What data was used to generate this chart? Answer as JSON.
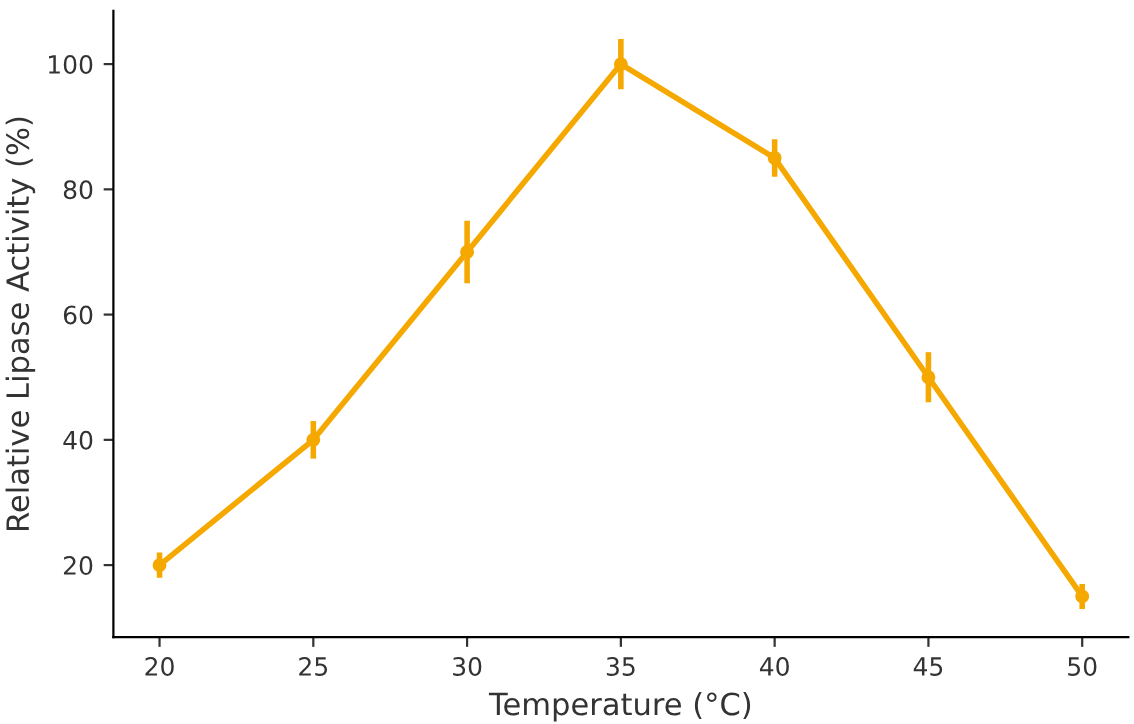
{
  "chart_data": {
    "type": "line",
    "xlabel": "Temperature (°C)",
    "ylabel": "Relative Lipase Activity (%)",
    "x": [
      20,
      25,
      30,
      35,
      40,
      45,
      50
    ],
    "series": [
      {
        "color": "#f5a800",
        "values": [
          20,
          40,
          70,
          100,
          85,
          50,
          15
        ],
        "errors": [
          2,
          3,
          5,
          4,
          3,
          4,
          2
        ]
      }
    ],
    "xlim": [
      18.5,
      51.5
    ],
    "ylim": [
      8.5,
      108.5
    ],
    "xticks": [
      20,
      25,
      30,
      35,
      40,
      45,
      50
    ],
    "yticks": [
      20,
      40,
      60,
      80,
      100
    ],
    "marker": "circle",
    "line_style": "solid",
    "grid": false,
    "legend": false
  }
}
